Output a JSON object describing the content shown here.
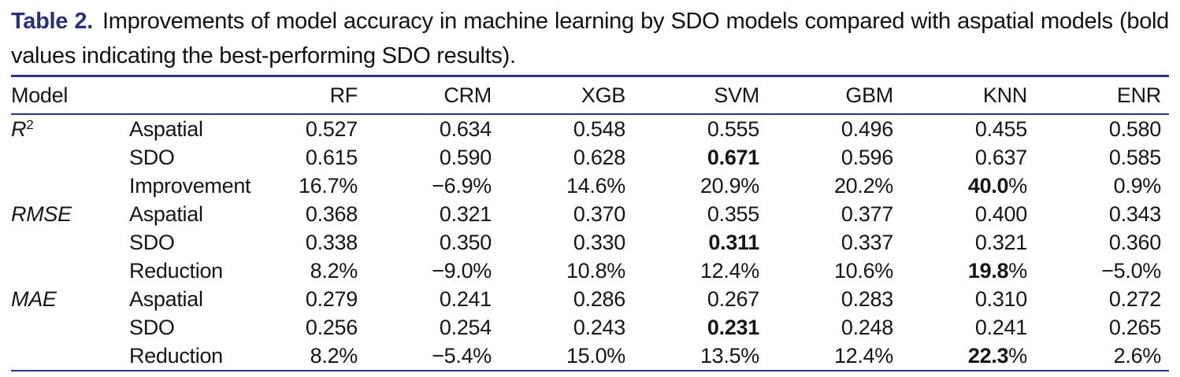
{
  "caption": {
    "label": "Table 2.",
    "text": "Improvements of model accuracy in machine learning by SDO models compared with aspatial models (bold values indicating the best-performing SDO results)."
  },
  "colors": {
    "accent_navy": "#2b347e",
    "text": "#161616"
  },
  "chart_data": {
    "type": "table",
    "title": "Improvements of model accuracy in machine learning by SDO models compared with aspatial models",
    "columns": [
      "Model",
      "",
      "RF",
      "CRM",
      "XGB",
      "SVM",
      "GBM",
      "KNN",
      "ENR"
    ],
    "note": "bold values indicating the best-performing SDO results"
  },
  "table": {
    "header": [
      "Model",
      "",
      "RF",
      "CRM",
      "XGB",
      "SVM",
      "GBM",
      "KNN",
      "ENR"
    ],
    "groups": [
      {
        "metric": {
          "base": "R",
          "sup": "2"
        },
        "rows": [
          {
            "label": "Aspatial",
            "values": [
              "0.527",
              "0.634",
              "0.548",
              "0.555",
              "0.496",
              "0.455",
              "0.580"
            ],
            "bold_cols": []
          },
          {
            "label": "SDO",
            "values": [
              "0.615",
              "0.590",
              "0.628",
              "0.671",
              "0.596",
              "0.637",
              "0.585"
            ],
            "bold_cols": [
              3
            ]
          },
          {
            "label": "Improvement",
            "values": [
              "16.7%",
              "−6.9%",
              "14.6%",
              "20.9%",
              "20.2%",
              "40.0%",
              "0.9%"
            ],
            "bold_cols": [
              5
            ]
          }
        ]
      },
      {
        "metric": {
          "base": "RMSE",
          "sup": ""
        },
        "rows": [
          {
            "label": "Aspatial",
            "values": [
              "0.368",
              "0.321",
              "0.370",
              "0.355",
              "0.377",
              "0.400",
              "0.343"
            ],
            "bold_cols": []
          },
          {
            "label": "SDO",
            "values": [
              "0.338",
              "0.350",
              "0.330",
              "0.311",
              "0.337",
              "0.321",
              "0.360"
            ],
            "bold_cols": [
              3
            ]
          },
          {
            "label": "Reduction",
            "values": [
              "8.2%",
              "−9.0%",
              "10.8%",
              "12.4%",
              "10.6%",
              "19.8%",
              "−5.0%"
            ],
            "bold_cols": [
              5
            ]
          }
        ]
      },
      {
        "metric": {
          "base": "MAE",
          "sup": ""
        },
        "rows": [
          {
            "label": "Aspatial",
            "values": [
              "0.279",
              "0.241",
              "0.286",
              "0.267",
              "0.283",
              "0.310",
              "0.272"
            ],
            "bold_cols": []
          },
          {
            "label": "SDO",
            "values": [
              "0.256",
              "0.254",
              "0.243",
              "0.231",
              "0.248",
              "0.241",
              "0.265"
            ],
            "bold_cols": [
              3
            ]
          },
          {
            "label": "Reduction",
            "values": [
              "8.2%",
              "−5.4%",
              "15.0%",
              "13.5%",
              "12.4%",
              "22.3%",
              "2.6%"
            ],
            "bold_cols": [
              5
            ]
          }
        ]
      }
    ]
  }
}
